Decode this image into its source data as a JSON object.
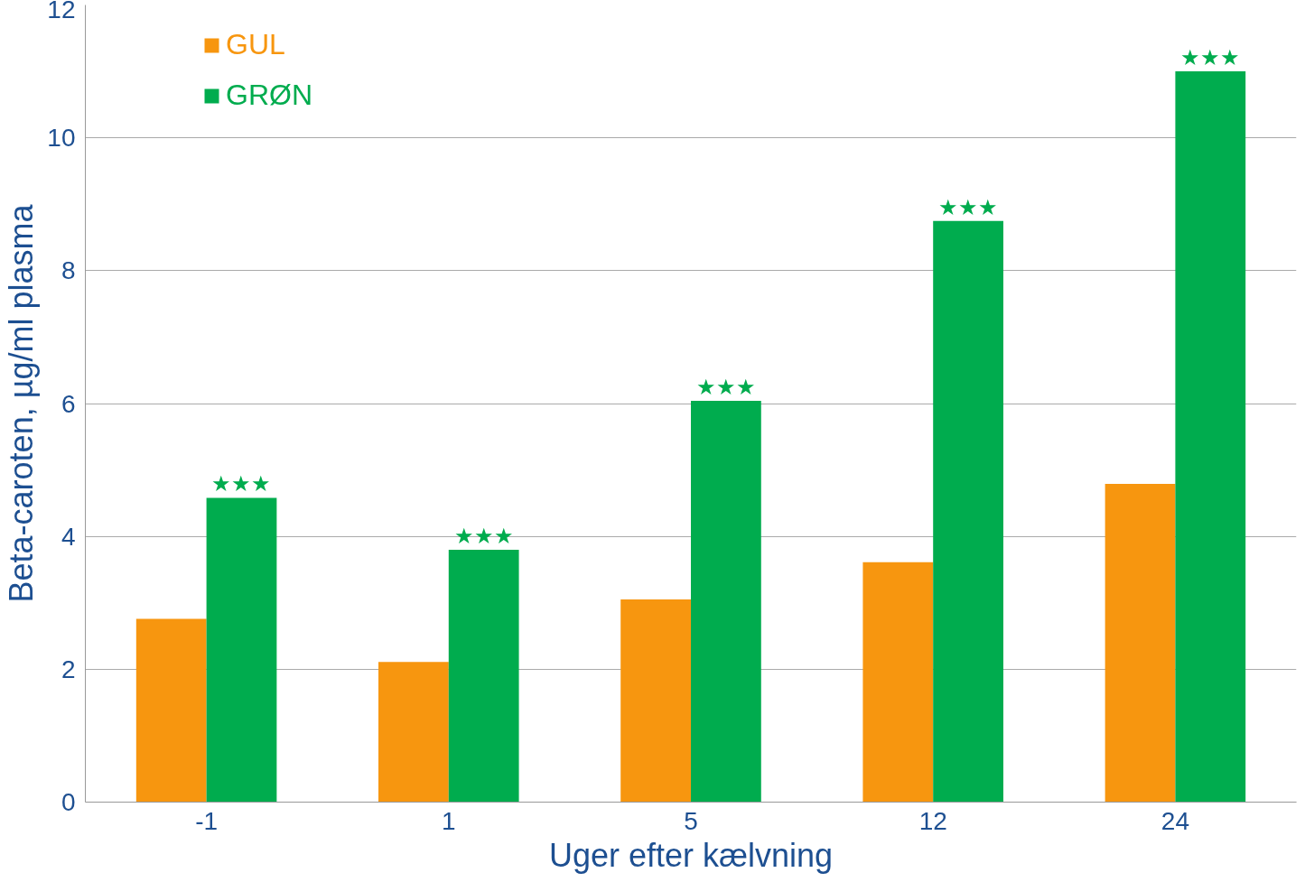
{
  "chart_data": {
    "type": "bar",
    "xlabel": "Uger efter kælvning",
    "ylabel": "Beta-caroten, µg/ml plasma",
    "categories": [
      "-1",
      "1",
      "5",
      "12",
      "24"
    ],
    "series": [
      {
        "name": "GUL",
        "color": "#f7960f",
        "values": [
          2.76,
          2.11,
          3.05,
          3.61,
          4.79
        ]
      },
      {
        "name": "GRØN",
        "color": "#00ac4e",
        "values": [
          4.58,
          3.8,
          6.04,
          8.75,
          11.0
        ]
      }
    ],
    "ylim": [
      0,
      12
    ],
    "yticks": [
      0,
      2,
      4,
      6,
      8,
      10,
      12
    ],
    "grid": "y",
    "legend": "top left",
    "annotations": [
      {
        "text": "★★★",
        "x": "-1",
        "y": 4.58
      },
      {
        "text": "★★★",
        "x": "1",
        "y": 3.8
      },
      {
        "text": "★★★",
        "x": "5",
        "y": 6.04
      },
      {
        "text": "★★★",
        "x": "12",
        "y": 8.75
      },
      {
        "text": "★★★",
        "x": "24",
        "y": 11.0
      }
    ]
  }
}
